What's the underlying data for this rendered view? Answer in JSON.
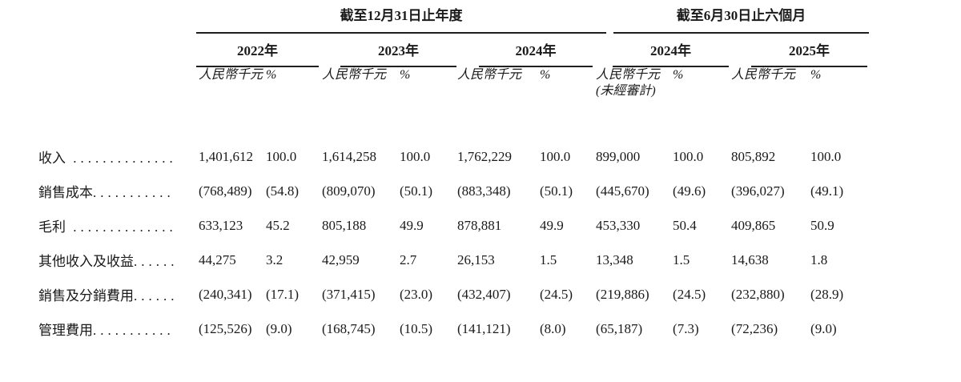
{
  "header": {
    "period_groups": [
      {
        "title": "截至12月31日止年度",
        "years": [
          "2022年",
          "2023年",
          "2024年"
        ]
      },
      {
        "title": "截至6月30日止六個月",
        "years": [
          "2024年",
          "2025年"
        ]
      }
    ],
    "unit_label": "人民幣千元",
    "percent_label": "%",
    "unaudited_note": "(未經審計)"
  },
  "rows": [
    {
      "label": "收入",
      "leader": " ..............",
      "values": [
        [
          "1,401,612",
          "100.0"
        ],
        [
          "1,614,258",
          "100.0"
        ],
        [
          "1,762,229",
          "100.0"
        ],
        [
          "899,000",
          "100.0"
        ],
        [
          "805,892",
          "100.0"
        ]
      ]
    },
    {
      "label": "銷售成本",
      "leader": "...........",
      "values": [
        [
          "(768,489)",
          "(54.8)"
        ],
        [
          "(809,070)",
          "(50.1)"
        ],
        [
          "(883,348)",
          "(50.1)"
        ],
        [
          "(445,670)",
          "(49.6)"
        ],
        [
          "(396,027)",
          "(49.1)"
        ]
      ]
    },
    {
      "label": "毛利",
      "leader": " ..............",
      "values": [
        [
          "633,123",
          "45.2"
        ],
        [
          "805,188",
          "49.9"
        ],
        [
          "878,881",
          "49.9"
        ],
        [
          "453,330",
          "50.4"
        ],
        [
          "409,865",
          "50.9"
        ]
      ]
    },
    {
      "label": "其他收入及收益",
      "leader": "......",
      "values": [
        [
          "44,275",
          "3.2"
        ],
        [
          "42,959",
          "2.7"
        ],
        [
          "26,153",
          "1.5"
        ],
        [
          "13,348",
          "1.5"
        ],
        [
          "14,638",
          "1.8"
        ]
      ]
    },
    {
      "label": "銷售及分銷費用",
      "leader": "......",
      "values": [
        [
          "(240,341)",
          "(17.1)"
        ],
        [
          "(371,415)",
          "(23.0)"
        ],
        [
          "(432,407)",
          "(24.5)"
        ],
        [
          "(219,886)",
          "(24.5)"
        ],
        [
          "(232,880)",
          "(28.9)"
        ]
      ]
    },
    {
      "label": "管理費用",
      "leader": "...........",
      "values": [
        [
          "(125,526)",
          "(9.0)"
        ],
        [
          "(168,745)",
          "(10.5)"
        ],
        [
          "(141,121)",
          "(8.0)"
        ],
        [
          "(65,187)",
          "(7.3)"
        ],
        [
          "(72,236)",
          "(9.0)"
        ]
      ]
    }
  ]
}
